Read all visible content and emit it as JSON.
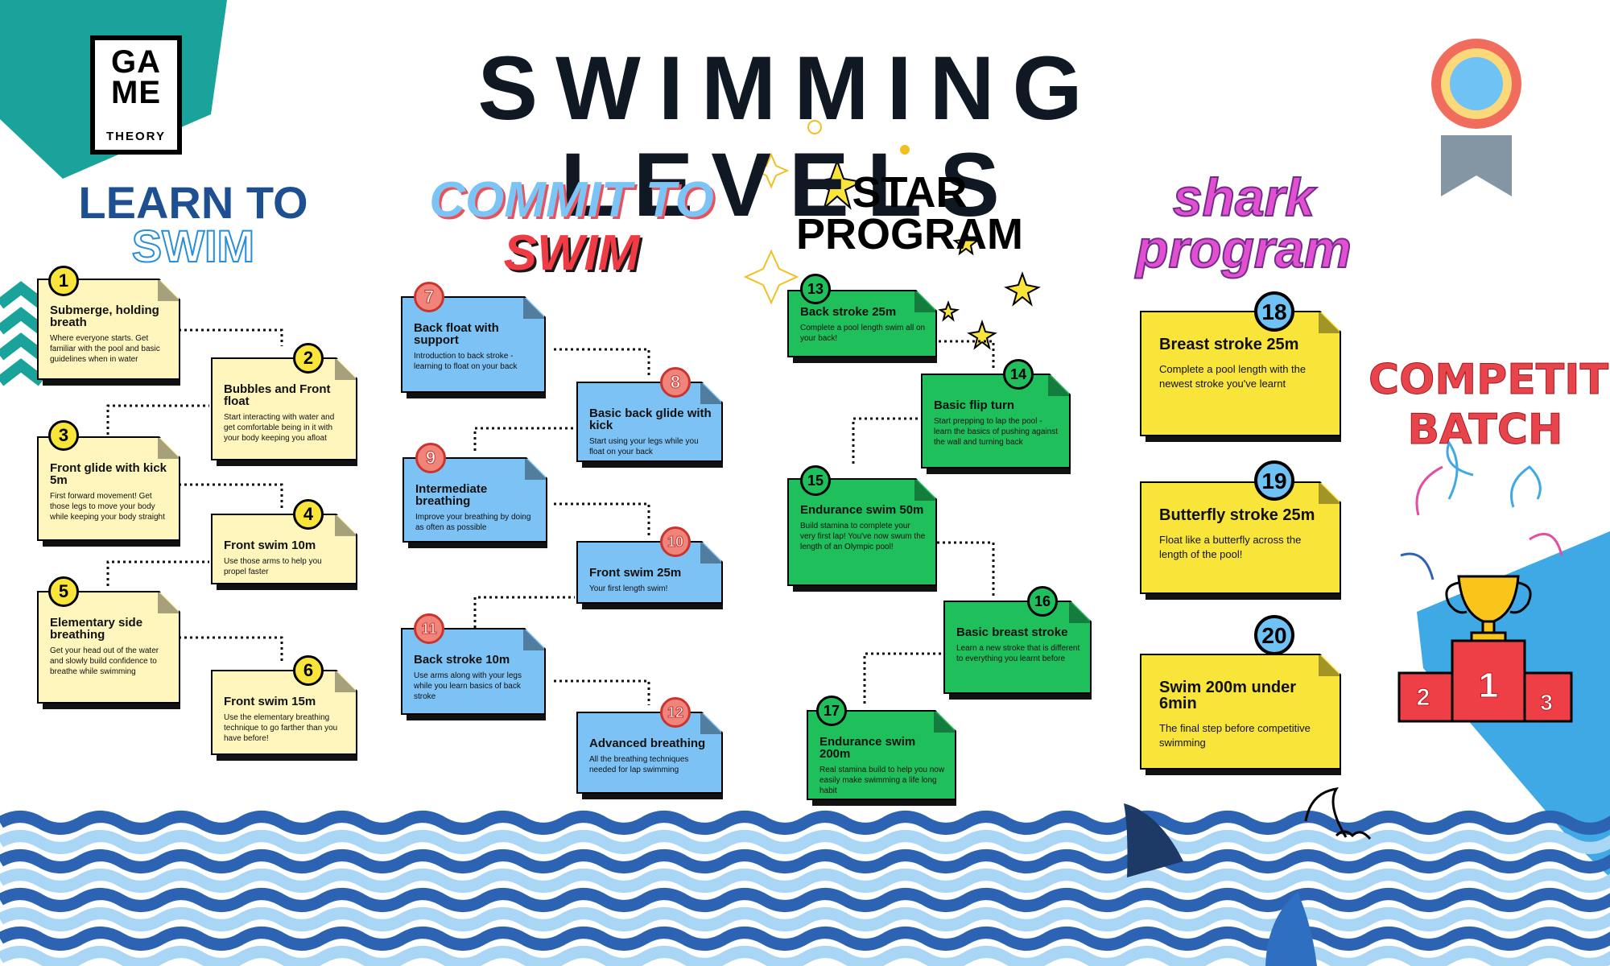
{
  "brand": {
    "logo_line1": "GA",
    "logo_line2": "ME",
    "logo_line3": "THEORY"
  },
  "title": "SWIMMING LEVELS",
  "colors": {
    "teal": "#1aa39a",
    "navy": "#1d4f91",
    "wave_blue": "#2d63b3",
    "wave_light": "#a9d6f5",
    "sky": "#3fa9e6",
    "yellow_card": "#fff6bd",
    "blue_card": "#7dc2f5",
    "green_card": "#1fbf5c",
    "shark_card": "#f9e53a"
  },
  "sections": {
    "learn": {
      "line1": "LEARN TO",
      "line2": "SWIM"
    },
    "commit": {
      "line1": "COMMIT TO",
      "line2": "SWIM"
    },
    "star": {
      "line1": "STAR",
      "line2": "PROGRAM"
    },
    "shark": {
      "line1": "shark",
      "line2": "program"
    },
    "competitive": {
      "line1": "COMPETITIVE",
      "line2": "BATCH"
    }
  },
  "levels": [
    {
      "num": "1",
      "title": "Submerge, holding breath",
      "desc": "Where everyone starts. Get familiar with the pool and basic guidelines when in water"
    },
    {
      "num": "2",
      "title": "Bubbles and Front float",
      "desc": "Start interacting with water and get comfortable being in it with your body keeping you afloat"
    },
    {
      "num": "3",
      "title": "Front glide with kick 5m",
      "desc": "First forward movement! Get those legs to move your body while keeping your body straight"
    },
    {
      "num": "4",
      "title": "Front swim 10m",
      "desc": "Use those arms to help you propel faster"
    },
    {
      "num": "5",
      "title": "Elementary side breathing",
      "desc": "Get your head out of the water and slowly build confidence to breathe while swimming"
    },
    {
      "num": "6",
      "title": "Front swim 15m",
      "desc": "Use the elementary breathing technique to go farther than you have before!"
    },
    {
      "num": "7",
      "title": "Back float with support",
      "desc": "Introduction to back stroke - learning to float on your back"
    },
    {
      "num": "8",
      "title": "Basic back glide with kick",
      "desc": "Start using your legs while you float on your back"
    },
    {
      "num": "9",
      "title": "Intermediate breathing",
      "desc": "Improve your breathing by doing as often as possible"
    },
    {
      "num": "10",
      "title": "Front swim 25m",
      "desc": "Your first length swim!"
    },
    {
      "num": "11",
      "title": "Back stroke 10m",
      "desc": "Use arms along with your legs while you learn basics of back stroke"
    },
    {
      "num": "12",
      "title": "Advanced breathing",
      "desc": "All the breathing techniques needed for lap swimming"
    },
    {
      "num": "13",
      "title": "Back stroke 25m",
      "desc": "Complete a pool length swim all on your back!"
    },
    {
      "num": "14",
      "title": "Basic flip turn",
      "desc": "Start prepping to lap the pool - learn the basics of pushing against the wall and turning back"
    },
    {
      "num": "15",
      "title": "Endurance swim 50m",
      "desc": "Build stamina to complete your very first lap! You've now swum the length of an Olympic pool!"
    },
    {
      "num": "16",
      "title": "Basic breast stroke",
      "desc": "Learn a new stroke that is different to everything you learnt before"
    },
    {
      "num": "17",
      "title": "Endurance swim 200m",
      "desc": "Real stamina build to help you now easily make swimming a life long habit"
    },
    {
      "num": "18",
      "title": "Breast stroke 25m",
      "desc": "Complete a pool length with the newest stroke you've learnt"
    },
    {
      "num": "19",
      "title": "Butterfly stroke 25m",
      "desc": "Float like a butterfly across the length of the pool!"
    },
    {
      "num": "20",
      "title": "Swim 200m under 6min",
      "desc": "The final step before competitive swimming"
    }
  ],
  "podium": {
    "first": "1",
    "second": "2",
    "third": "3"
  }
}
